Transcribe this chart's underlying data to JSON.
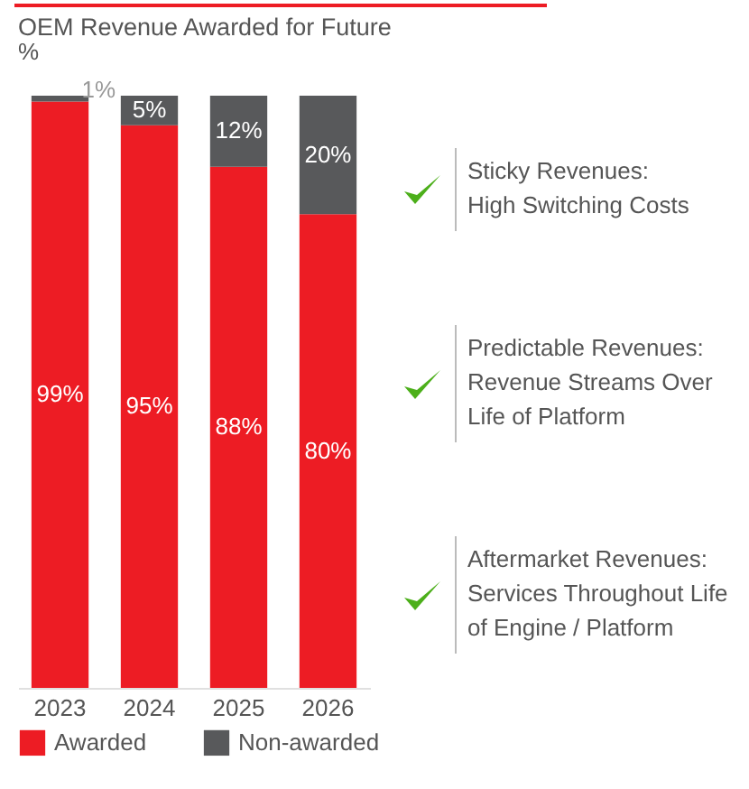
{
  "chart_data": {
    "type": "bar",
    "title": "OEM Revenue Awarded for Future",
    "subtitle": "%",
    "categories": [
      "2023",
      "2024",
      "2025",
      "2026"
    ],
    "stacked": true,
    "ylim": [
      0,
      100
    ],
    "tick_labels": "x",
    "legend": "bottom",
    "series": [
      {
        "name": "Awarded",
        "color": "#ed1c24",
        "values": [
          99,
          95,
          88,
          80
        ],
        "value_labels": [
          "99%",
          "95%",
          "88%",
          "80%"
        ]
      },
      {
        "name": "Non-awarded",
        "color": "#58595b",
        "values": [
          1,
          5,
          12,
          20
        ],
        "value_labels": [
          "1%",
          "5%",
          "12%",
          "20%"
        ]
      }
    ],
    "annotations": [
      "Sticky Revenues:\nHigh Switching Costs",
      "Predictable Revenues:\nRevenue Streams Over\nLife of Platform",
      "Aftermarket Revenues:\nServices Throughout Life\nof Engine / Platform"
    ]
  }
}
